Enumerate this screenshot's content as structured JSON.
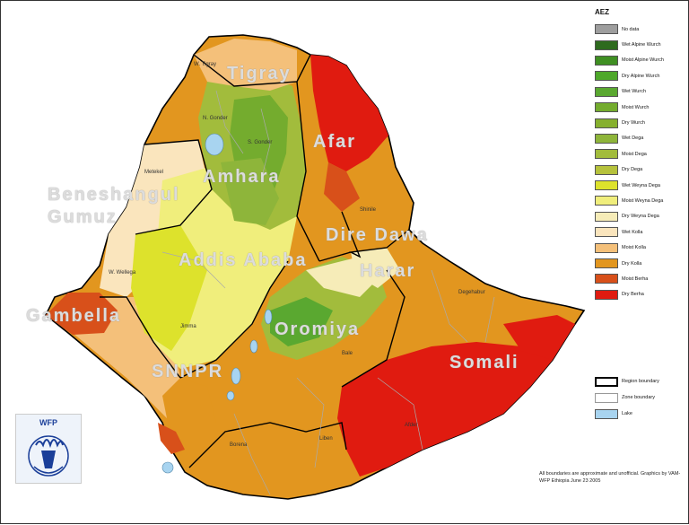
{
  "legend": {
    "title": "AEZ",
    "items": [
      {
        "label": "No data",
        "color": "#9e9e9e"
      },
      {
        "label": "Wet Alpine Wurch",
        "color": "#2e6b1e"
      },
      {
        "label": "Moist Alpine Wurch",
        "color": "#3f8f22"
      },
      {
        "label": "Dry Alpine Wurch",
        "color": "#4ea82a"
      },
      {
        "label": "Wet Wurch",
        "color": "#5aa830"
      },
      {
        "label": "Moist Wurch",
        "color": "#74ac2e"
      },
      {
        "label": "Dry Wurch",
        "color": "#86b02e"
      },
      {
        "label": "Wet Dega",
        "color": "#8eb53a"
      },
      {
        "label": "Moist Dega",
        "color": "#a2bc3c"
      },
      {
        "label": "Dry Dega",
        "color": "#b6c23c"
      },
      {
        "label": "Wet Weyna Dega",
        "color": "#dde22c"
      },
      {
        "label": "Moist Weyna Dega",
        "color": "#f0ee7c"
      },
      {
        "label": "Dry Weyna Dega",
        "color": "#f6ecb8"
      },
      {
        "label": "Wet Kolla",
        "color": "#fae5bd"
      },
      {
        "label": "Moist Kolla",
        "color": "#f4c07a"
      },
      {
        "label": "Dry Kolla",
        "color": "#e2961f"
      },
      {
        "label": "Moist Berha",
        "color": "#d8501a"
      },
      {
        "label": "Dry Berha",
        "color": "#e01b10"
      }
    ]
  },
  "legend_boundaries": [
    {
      "label": "Region boundary",
      "kind": "region"
    },
    {
      "label": "Zone boundary",
      "kind": "zone"
    },
    {
      "label": "Lake",
      "kind": "lake",
      "color": "#a8d4f0"
    }
  ],
  "regions": {
    "tigray": "Tigray",
    "afar": "Afar",
    "amhara": "Amhara",
    "beneshangul_1": "Beneshangul",
    "beneshangul_2": "Gumuz",
    "dire_dawa": "Dire Dawa",
    "harar": "Harar",
    "addis": "Addis Ababa",
    "gambella": "Gambella",
    "oromiya": "Oromiya",
    "snnpr": "SNNPR",
    "somali": "Somali"
  },
  "zones": {
    "w_tigray": "W. Tigray",
    "n_gonder": "N. Gonder",
    "s_gonder": "S. Gonder",
    "metekel": "Metekel",
    "shinile": "Shinile",
    "w_wellega": "W. Wellega",
    "degehabur": "Degehabur",
    "borena": "Borena",
    "bale": "Bale",
    "liben": "Liben",
    "afder": "Afder",
    "jimma": "Jimma"
  },
  "logo_text": "WFP",
  "disclaimer": "All boundaries are approximate and unofficial. Graphics by VAM-WFP Ethiopia June 23 2005"
}
